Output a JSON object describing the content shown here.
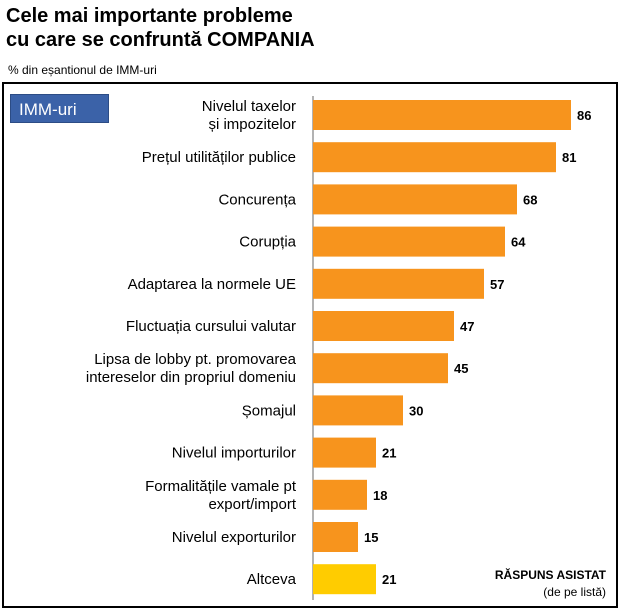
{
  "title_line1": "Cele mai importante probleme",
  "title_line2": "cu care se confruntă COMPANIA",
  "subtitle": "% din eșantionul de IMM-uri",
  "badge": "IMM-uri",
  "note_line1": "RĂSPUNS ASISTAT",
  "note_line2": "(de pe listă)",
  "colors": {
    "bar": "#f7941d",
    "bar_other": "#ffcc00",
    "badge": "#3b62a8"
  },
  "chart_data": {
    "type": "bar",
    "orientation": "horizontal",
    "categories": [
      [
        "Nivelul taxelor",
        "și impozitelor"
      ],
      [
        "Prețul utilităților publice"
      ],
      [
        "Concurența"
      ],
      [
        "Corupția"
      ],
      [
        "Adaptarea la normele UE"
      ],
      [
        "Fluctuația cursului valutar"
      ],
      [
        "Lipsa de lobby pt. promovarea",
        "intereselor din propriul domeniu"
      ],
      [
        "Șomajul"
      ],
      [
        "Nivelul importurilor"
      ],
      [
        "Formalitățile vamale pt",
        "export/import"
      ],
      [
        "Nivelul exporturilor"
      ],
      [
        "Altceva"
      ]
    ],
    "values": [
      86,
      81,
      68,
      64,
      57,
      47,
      45,
      30,
      21,
      18,
      15,
      21
    ],
    "highlight_last": true,
    "xlim": [
      0,
      100
    ]
  }
}
